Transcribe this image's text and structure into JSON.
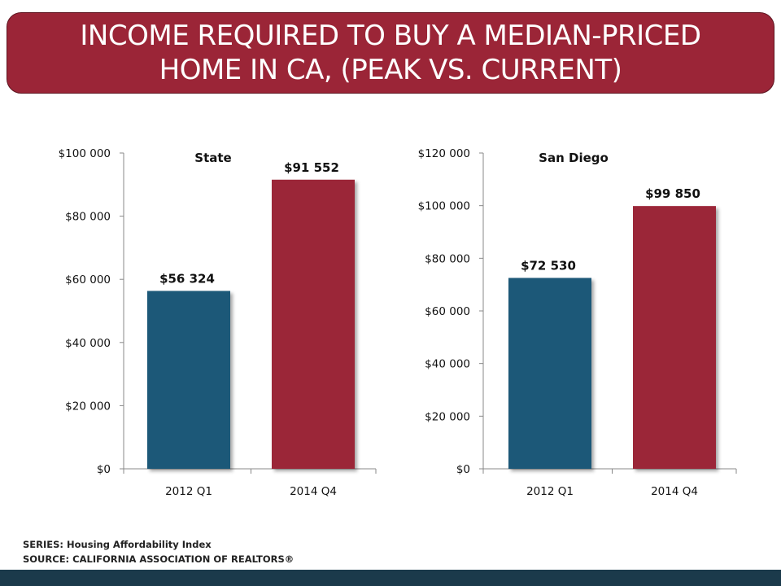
{
  "title": {
    "line1": "INCOME REQUIRED TO BUY A MEDIAN-PRICED",
    "line2": "HOME IN CA, (PEAK VS. CURRENT)"
  },
  "chart_data": [
    {
      "type": "bar",
      "title": "State",
      "categories": [
        "2012 Q1",
        "2014 Q4"
      ],
      "values": [
        56324,
        91552
      ],
      "value_labels": [
        "$56 324",
        "$91 552"
      ],
      "bar_colors": [
        "#1d5878",
        "#9b2537"
      ],
      "xlabel": "",
      "ylabel": "",
      "ylim": [
        0,
        100000
      ],
      "y_ticks": [
        0,
        20000,
        40000,
        60000,
        80000,
        100000
      ],
      "y_tick_labels": [
        "$0",
        "$20 000",
        "$40 000",
        "$60 000",
        "$80 000",
        "$100 000"
      ],
      "grid": false,
      "legend": "none"
    },
    {
      "type": "bar",
      "title": "San Diego",
      "categories": [
        "2012 Q1",
        "2014 Q4"
      ],
      "values": [
        72530,
        99850
      ],
      "value_labels": [
        "$72 530",
        "$99 850"
      ],
      "bar_colors": [
        "#1d5878",
        "#9b2537"
      ],
      "xlabel": "",
      "ylabel": "",
      "ylim": [
        0,
        120000
      ],
      "y_ticks": [
        0,
        20000,
        40000,
        60000,
        80000,
        100000,
        120000
      ],
      "y_tick_labels": [
        "$0",
        "$20 000",
        "$40 000",
        "$60 000",
        "$80 000",
        "$100 000",
        "$120 000"
      ],
      "grid": false,
      "legend": "none"
    }
  ],
  "footnote": {
    "series": "SERIES: Housing Affordability Index",
    "source": "SOURCE:  CALIFORNIA ASSOCIATION OF REALTORS®"
  },
  "colors": {
    "banner": "#9b2537",
    "bottom_bar": "#1b3a4b",
    "bar_blue": "#1d5878",
    "bar_red": "#9b2537"
  }
}
